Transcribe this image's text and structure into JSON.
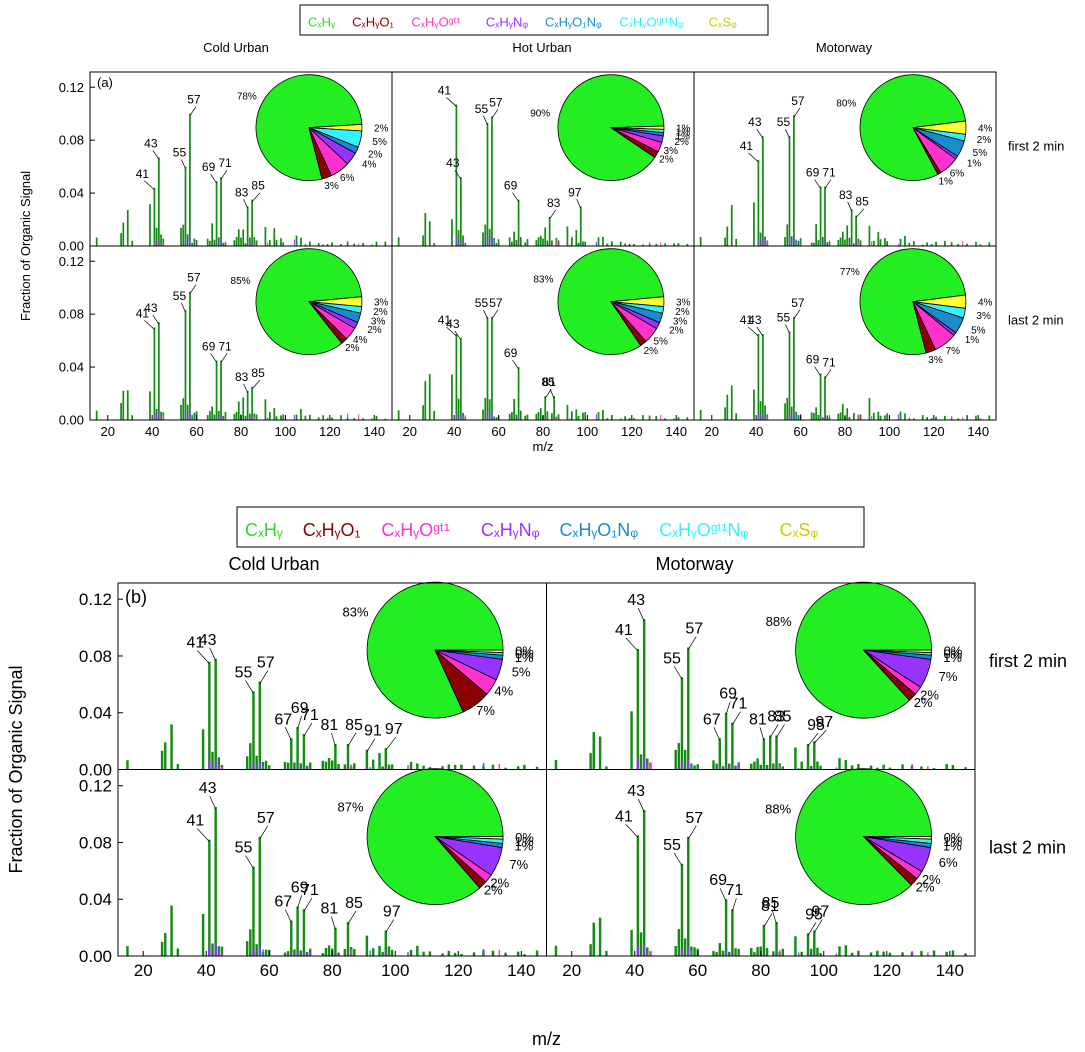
{
  "legend": {
    "items": [
      {
        "label": "CₓHᵧ",
        "color": "#2fd62f"
      },
      {
        "label": "CₓHᵧO₁",
        "color": "#8b0000"
      },
      {
        "label": "CₓHᵧOᵍᵗ¹",
        "color": "#ff33cc"
      },
      {
        "label": "CₓHᵧNᵩ",
        "color": "#9933ff"
      },
      {
        "label": "CₓHᵧO₁Nᵩ",
        "color": "#1a8ccc"
      },
      {
        "label": "CₓHᵧOᵍᵗ¹Nᵩ",
        "color": "#33f2ff"
      },
      {
        "label": "CₓSᵩ",
        "color": "#cccc00"
      }
    ]
  },
  "colors": {
    "CxHy_bar": "#148c14",
    "CxHy_pie": "#22ee22",
    "CxHyO1": "#8b0000",
    "CxHyOgt1": "#ff33cc",
    "CxHyNz": "#9933ff",
    "CxHyO1Nz": "#1a8ccc",
    "CxHyOgt1Nz": "#33f2ff",
    "CxSw": "#ffff33"
  },
  "chart_data": [
    {
      "type": "bar",
      "panel": "(a)",
      "ylabel": "Fraction of Organic Signal",
      "xlabel": "m/z",
      "xlim": [
        12,
        148
      ],
      "ylim": [
        0,
        0.13
      ],
      "xticks": [
        20,
        40,
        60,
        80,
        100,
        120,
        140
      ],
      "yticks": [
        "0.00",
        "0.04",
        "0.08",
        "0.12"
      ],
      "columns": [
        "Cold Urban",
        "Hot Urban",
        "Motorway"
      ],
      "rows": [
        "first 2 min",
        "last 2 min"
      ],
      "subplots": [
        {
          "column": "Cold Urban",
          "row": "first 2 min",
          "peaks": [
            {
              "mz": 41,
              "value": 0.044
            },
            {
              "mz": 43,
              "value": 0.067
            },
            {
              "mz": 55,
              "value": 0.06
            },
            {
              "mz": 57,
              "value": 0.1
            },
            {
              "mz": 69,
              "value": 0.049
            },
            {
              "mz": 71,
              "value": 0.052
            },
            {
              "mz": 83,
              "value": 0.03
            },
            {
              "mz": 85,
              "value": 0.035
            }
          ],
          "pie": [
            78,
            3,
            6,
            4,
            2,
            5,
            2
          ],
          "pie_labels": [
            "78%",
            "3%",
            "6%",
            "4%",
            "2%",
            "5%",
            "2%"
          ]
        },
        {
          "column": "Hot Urban",
          "row": "first 2 min",
          "peaks": [
            {
              "mz": 41,
              "value": 0.107
            },
            {
              "mz": 43,
              "value": 0.052
            },
            {
              "mz": 55,
              "value": 0.093
            },
            {
              "mz": 57,
              "value": 0.098
            },
            {
              "mz": 69,
              "value": 0.035
            },
            {
              "mz": 83,
              "value": 0.022
            },
            {
              "mz": 97,
              "value": 0.03
            }
          ],
          "pie": [
            90,
            2,
            3,
            2,
            1,
            1,
            1
          ],
          "pie_labels": [
            "90%",
            "2%",
            "3%",
            "2%",
            "1%",
            "1%",
            "1%"
          ]
        },
        {
          "column": "Motorway",
          "row": "first 2 min",
          "peaks": [
            {
              "mz": 41,
              "value": 0.065
            },
            {
              "mz": 43,
              "value": 0.083
            },
            {
              "mz": 55,
              "value": 0.083
            },
            {
              "mz": 57,
              "value": 0.099
            },
            {
              "mz": 69,
              "value": 0.045
            },
            {
              "mz": 71,
              "value": 0.045
            },
            {
              "mz": 83,
              "value": 0.028
            },
            {
              "mz": 85,
              "value": 0.023
            }
          ],
          "pie": [
            80,
            1,
            6,
            1,
            5,
            2,
            4
          ],
          "pie_labels": [
            "80%",
            "1%",
            "6%",
            "1%",
            "5%",
            "2%",
            "4%"
          ]
        },
        {
          "column": "Cold Urban",
          "row": "last 2 min",
          "peaks": [
            {
              "mz": 41,
              "value": 0.07
            },
            {
              "mz": 43,
              "value": 0.074
            },
            {
              "mz": 55,
              "value": 0.083
            },
            {
              "mz": 57,
              "value": 0.097
            },
            {
              "mz": 69,
              "value": 0.045
            },
            {
              "mz": 71,
              "value": 0.045
            },
            {
              "mz": 83,
              "value": 0.022
            },
            {
              "mz": 85,
              "value": 0.025
            }
          ],
          "pie": [
            85,
            2,
            4,
            2,
            3,
            2,
            3
          ],
          "pie_labels": [
            "85%",
            "2%",
            "4%",
            "2%",
            "3%",
            "2%",
            "3%"
          ]
        },
        {
          "column": "Hot Urban",
          "row": "last 2 min",
          "peaks": [
            {
              "mz": 41,
              "value": 0.065
            },
            {
              "mz": 43,
              "value": 0.062
            },
            {
              "mz": 55,
              "value": 0.078
            },
            {
              "mz": 57,
              "value": 0.078
            },
            {
              "mz": 69,
              "value": 0.04
            },
            {
              "mz": 81,
              "value": 0.018
            },
            {
              "mz": 85,
              "value": 0.018
            }
          ],
          "pie": [
            83,
            2,
            5,
            2,
            3,
            2,
            3
          ],
          "pie_labels": [
            "83%",
            "2%",
            "5%",
            "2%",
            "3%",
            "2%",
            "3%"
          ]
        },
        {
          "column": "Motorway",
          "row": "last 2 min",
          "peaks": [
            {
              "mz": 41,
              "value": 0.065
            },
            {
              "mz": 43,
              "value": 0.065
            },
            {
              "mz": 55,
              "value": 0.067
            },
            {
              "mz": 57,
              "value": 0.078
            },
            {
              "mz": 69,
              "value": 0.035
            },
            {
              "mz": 71,
              "value": 0.033
            }
          ],
          "pie": [
            77,
            3,
            7,
            1,
            5,
            3,
            4
          ],
          "pie_labels": [
            "77%",
            "3%",
            "7%",
            "1%",
            "5%",
            "3%",
            "4%"
          ]
        }
      ]
    },
    {
      "type": "bar",
      "panel": "(b)",
      "ylabel": "Fraction of Organic Signal",
      "xlabel": "m/z",
      "xlim": [
        12,
        148
      ],
      "ylim": [
        0,
        0.13
      ],
      "xticks": [
        20,
        40,
        60,
        80,
        100,
        120,
        140
      ],
      "yticks": [
        "0.00",
        "0.04",
        "0.08",
        "0.12"
      ],
      "columns": [
        "Cold Urban",
        "Motorway"
      ],
      "rows": [
        "first 2 min",
        "last 2 min"
      ],
      "subplots": [
        {
          "column": "Cold Urban",
          "row": "first 2 min",
          "peaks": [
            {
              "mz": 41,
              "value": 0.076
            },
            {
              "mz": 43,
              "value": 0.078
            },
            {
              "mz": 55,
              "value": 0.055
            },
            {
              "mz": 57,
              "value": 0.062
            },
            {
              "mz": 67,
              "value": 0.022
            },
            {
              "mz": 69,
              "value": 0.03
            },
            {
              "mz": 71,
              "value": 0.025
            },
            {
              "mz": 81,
              "value": 0.018
            },
            {
              "mz": 85,
              "value": 0.018
            },
            {
              "mz": 91,
              "value": 0.014
            },
            {
              "mz": 97,
              "value": 0.015
            }
          ],
          "pie": [
            83,
            7,
            4,
            5,
            1,
            0,
            0
          ],
          "pie_labels": [
            "83%",
            "7%",
            "4%",
            "5%",
            "1%",
            "0%",
            "0%"
          ]
        },
        {
          "column": "Motorway",
          "row": "first 2 min",
          "peaks": [
            {
              "mz": 41,
              "value": 0.085
            },
            {
              "mz": 43,
              "value": 0.106
            },
            {
              "mz": 55,
              "value": 0.065
            },
            {
              "mz": 57,
              "value": 0.086
            },
            {
              "mz": 67,
              "value": 0.022
            },
            {
              "mz": 69,
              "value": 0.04
            },
            {
              "mz": 71,
              "value": 0.033
            },
            {
              "mz": 81,
              "value": 0.022
            },
            {
              "mz": 83,
              "value": 0.024
            },
            {
              "mz": 85,
              "value": 0.024
            },
            {
              "mz": 95,
              "value": 0.018
            },
            {
              "mz": 97,
              "value": 0.02
            }
          ],
          "pie": [
            88,
            2,
            2,
            7,
            1,
            0,
            0
          ],
          "pie_labels": [
            "88%",
            "2%",
            "2%",
            "7%",
            "1%",
            "0%",
            "0%"
          ]
        },
        {
          "column": "Cold Urban",
          "row": "last 2 min",
          "peaks": [
            {
              "mz": 41,
              "value": 0.082
            },
            {
              "mz": 43,
              "value": 0.105
            },
            {
              "mz": 55,
              "value": 0.063
            },
            {
              "mz": 57,
              "value": 0.084
            },
            {
              "mz": 67,
              "value": 0.025
            },
            {
              "mz": 69,
              "value": 0.035
            },
            {
              "mz": 71,
              "value": 0.033
            },
            {
              "mz": 81,
              "value": 0.02
            },
            {
              "mz": 85,
              "value": 0.024
            },
            {
              "mz": 97,
              "value": 0.018
            }
          ],
          "pie": [
            87,
            2,
            2,
            7,
            1,
            1,
            0
          ],
          "pie_labels": [
            "87%",
            "2%",
            "2%",
            "7%",
            "1%",
            "1%",
            "0%"
          ]
        },
        {
          "column": "Motorway",
          "row": "last 2 min",
          "peaks": [
            {
              "mz": 41,
              "value": 0.085
            },
            {
              "mz": 43,
              "value": 0.103
            },
            {
              "mz": 55,
              "value": 0.065
            },
            {
              "mz": 57,
              "value": 0.084
            },
            {
              "mz": 69,
              "value": 0.04
            },
            {
              "mz": 71,
              "value": 0.033
            },
            {
              "mz": 81,
              "value": 0.022
            },
            {
              "mz": 85,
              "value": 0.024
            },
            {
              "mz": 95,
              "value": 0.016
            },
            {
              "mz": 97,
              "value": 0.018
            }
          ],
          "pie": [
            88,
            2,
            2,
            6,
            1,
            1,
            0
          ],
          "pie_labels": [
            "88%",
            "2%",
            "2%",
            "6%",
            "1%",
            "1%",
            "0%"
          ]
        }
      ]
    }
  ]
}
